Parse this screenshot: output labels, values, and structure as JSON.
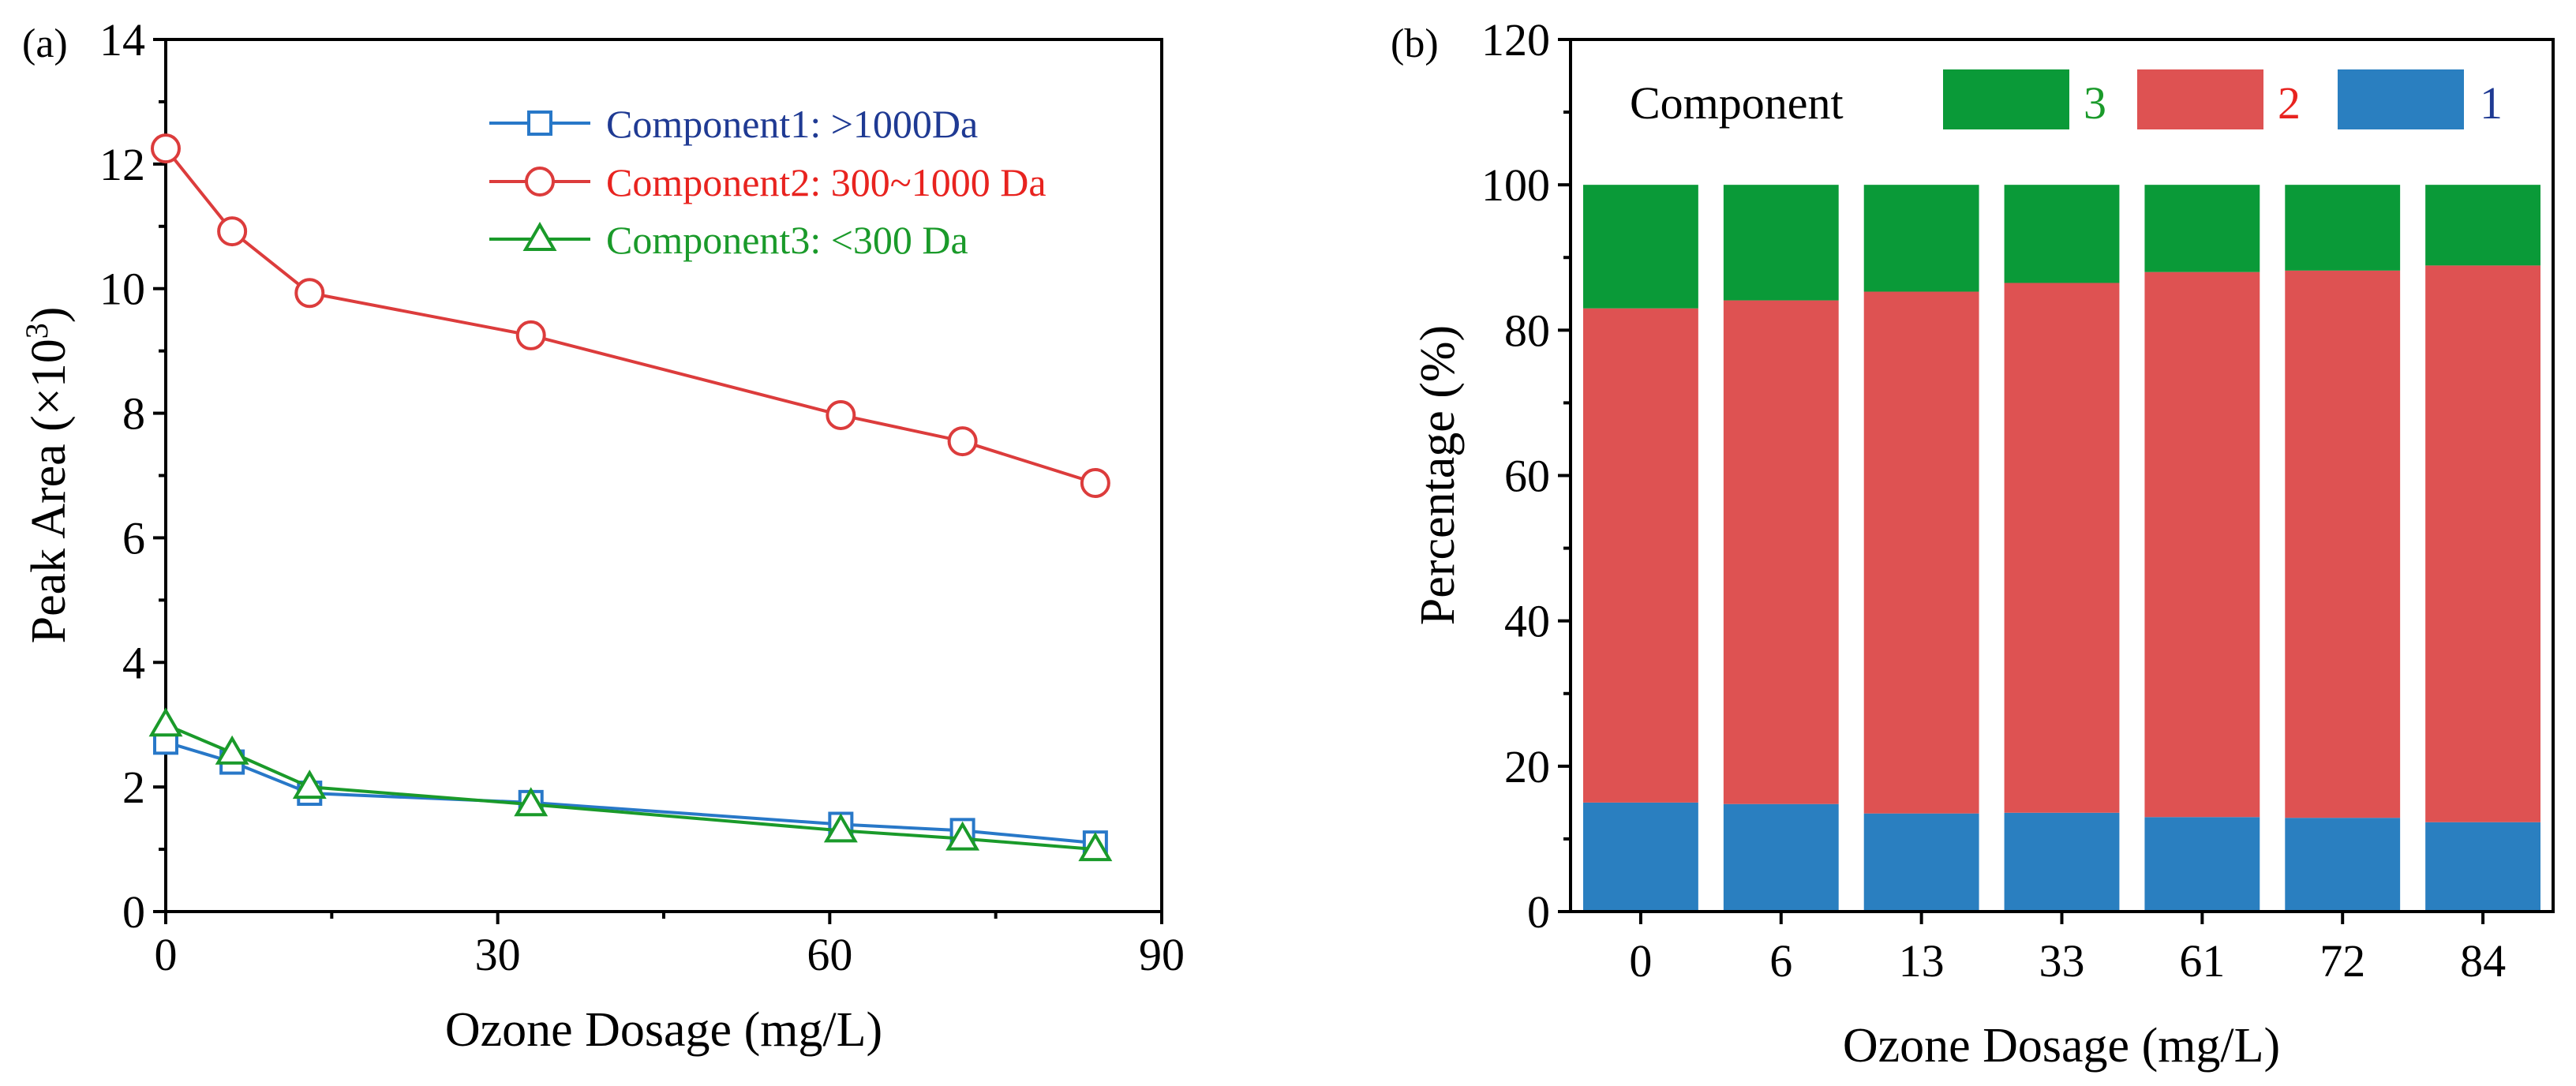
{
  "chart_data": [
    {
      "panel": "(a)",
      "type": "line",
      "title": "",
      "xlabel": "Ozone Dosage (mg/L)",
      "ylabel_main": "Peak Area (×10",
      "ylabel_sup": "3",
      "ylabel_close": ")",
      "xlim": [
        0,
        90
      ],
      "ylim": [
        0,
        14
      ],
      "xticks": [
        0,
        30,
        60,
        90
      ],
      "yticks": [
        0,
        2,
        4,
        6,
        8,
        10,
        12,
        14
      ],
      "x": [
        0,
        6,
        13,
        33,
        61,
        72,
        84
      ],
      "legend_position": "top-right",
      "series": [
        {
          "name": "Component1",
          "label_suffix": ": >1000Da",
          "marker": "square",
          "color": "#2878c8",
          "text_color": "#1f3a93",
          "values": [
            2.72,
            2.4,
            1.9,
            1.75,
            1.4,
            1.3,
            1.1
          ]
        },
        {
          "name": "Component2",
          "label_suffix": ": 300~1000 Da",
          "marker": "circle",
          "color": "#dc3c3c",
          "text_color": "#e8231f",
          "values": [
            12.25,
            10.92,
            9.93,
            9.25,
            7.97,
            7.55,
            6.88
          ]
        },
        {
          "name": "Component3",
          "label_suffix": ": <300 Da",
          "marker": "triangle",
          "color": "#1a9a2a",
          "text_color": "#1a9a2a",
          "values": [
            3.0,
            2.55,
            2.0,
            1.72,
            1.3,
            1.17,
            1.0
          ]
        }
      ]
    },
    {
      "panel": "(b)",
      "type": "bar",
      "stacked": true,
      "title": "",
      "xlabel": "Ozone Dosage (mg/L)",
      "ylabel": "Percentage (%)",
      "ylim": [
        0,
        120
      ],
      "yticks": [
        0,
        20,
        40,
        60,
        80,
        100,
        120
      ],
      "categories": [
        "0",
        "6",
        "13",
        "33",
        "61",
        "72",
        "84"
      ],
      "legend_title": "Component",
      "legend_position": "top",
      "series": [
        {
          "name": "1",
          "color": "#2a7fc0",
          "text_color": "#1f3a93",
          "values": [
            15.0,
            14.8,
            13.5,
            13.6,
            13.0,
            12.9,
            12.3
          ]
        },
        {
          "name": "2",
          "color": "#de5252",
          "text_color": "#e8231f",
          "values": [
            68.0,
            69.3,
            71.8,
            72.9,
            75.0,
            75.3,
            76.6
          ]
        },
        {
          "name": "3",
          "color": "#0a9a38",
          "text_color": "#1a9a2a",
          "values": [
            17.0,
            15.9,
            14.7,
            13.5,
            12.0,
            11.8,
            11.1
          ]
        }
      ]
    }
  ]
}
